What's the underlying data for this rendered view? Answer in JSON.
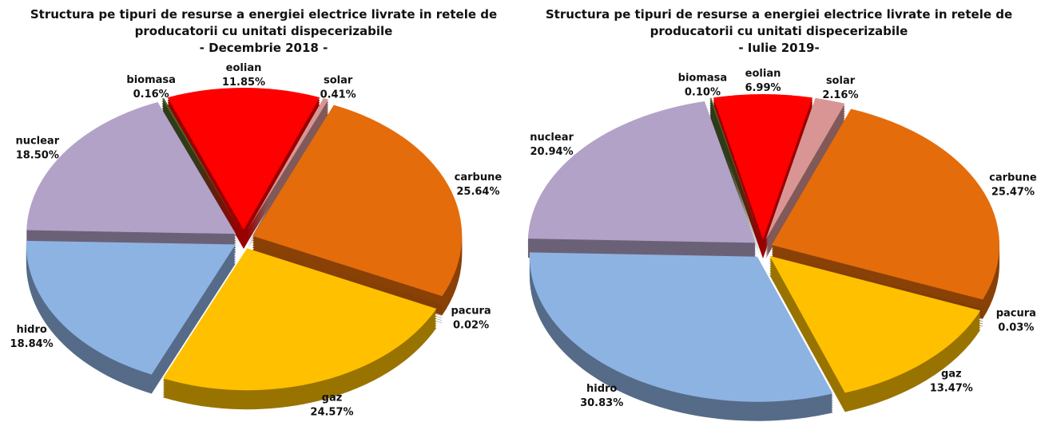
{
  "chart_data": [
    {
      "type": "pie",
      "title": "Structura pe tipuri de resurse a energiei electrice livrate in retele de producatorii cu unitati dispecerizabile",
      "subtitle": "- Decembrie 2018 -",
      "categories": [
        "eolian",
        "solar",
        "carbune",
        "pacura",
        "gaz",
        "hidro",
        "nuclear",
        "biomasa"
      ],
      "values": [
        11.85,
        0.41,
        25.64,
        0.02,
        24.57,
        18.84,
        18.5,
        0.16
      ],
      "value_labels": [
        "11.85%",
        "0.41%",
        "25.64%",
        "0.02%",
        "24.57%",
        "18.84%",
        "18.50%",
        "0.16%"
      ],
      "colors": [
        "#ff0000",
        "#d99594",
        "#e46c0a",
        "#7f3f00",
        "#ffc000",
        "#8db3e2",
        "#b3a2c7",
        "#4f6228"
      ]
    },
    {
      "type": "pie",
      "title": "Structura pe tipuri de resurse a energiei electrice livrate in retele de producatorii cu unitati dispecerizabile",
      "subtitle": "- Iulie 2019-",
      "categories": [
        "eolian",
        "solar",
        "carbune",
        "pacura",
        "gaz",
        "hidro",
        "nuclear",
        "biomasa"
      ],
      "values": [
        6.99,
        2.16,
        25.47,
        0.03,
        13.47,
        30.83,
        20.94,
        0.1
      ],
      "value_labels": [
        "6.99%",
        "2.16%",
        "25.47%",
        "0.03%",
        "13.47%",
        "30.83%",
        "20.94%",
        "0.10%"
      ],
      "colors": [
        "#ff0000",
        "#d99594",
        "#e46c0a",
        "#7f3f00",
        "#ffc000",
        "#8db3e2",
        "#b3a2c7",
        "#4f6228"
      ]
    }
  ]
}
